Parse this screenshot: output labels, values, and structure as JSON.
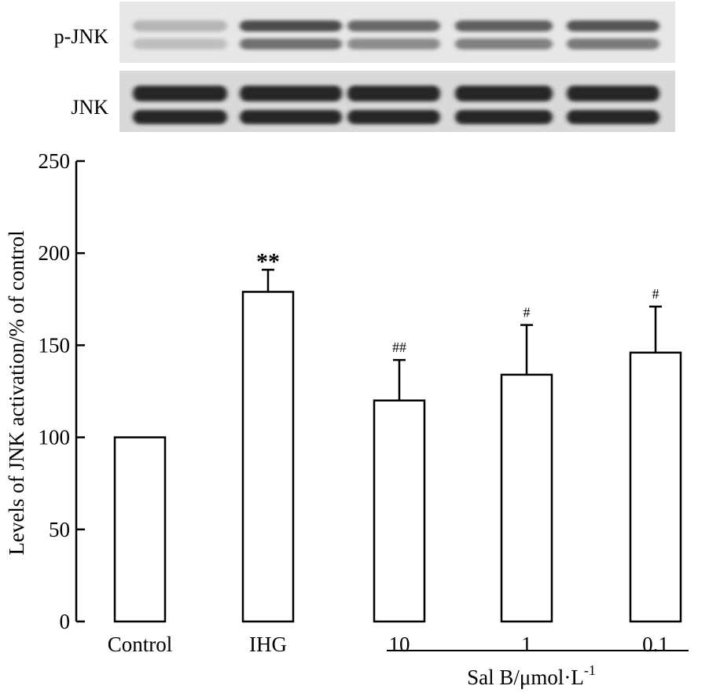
{
  "blot": {
    "rows": [
      {
        "label": "p-JNK",
        "upper_band_intensity": [
          0.32,
          0.78,
          0.66,
          0.7,
          0.74
        ],
        "lower_band_intensity": [
          0.28,
          0.62,
          0.5,
          0.55,
          0.58
        ]
      },
      {
        "label": "JNK",
        "upper_band_intensity": [
          0.95,
          0.95,
          0.95,
          0.95,
          0.95
        ],
        "lower_band_intensity": [
          0.95,
          0.95,
          0.95,
          0.95,
          0.95
        ]
      }
    ]
  },
  "chart_data": {
    "type": "bar",
    "categories": [
      "Control",
      "IHG",
      "10",
      "1",
      "0.1"
    ],
    "values": [
      100,
      179,
      120,
      134,
      146
    ],
    "errors": [
      0,
      12,
      22,
      27,
      25
    ],
    "annotations": [
      "",
      "**",
      "##",
      "#",
      "#"
    ],
    "ylabel": "Levels of JNK activation/% of control",
    "ylim": [
      0,
      250
    ],
    "yticks": [
      0,
      50,
      100,
      150,
      200,
      250
    ],
    "group_label": "Sal B/μmol·L",
    "group_label_superscript": "-1",
    "bar_fill": "#ffffff",
    "bar_stroke": "#000000"
  }
}
